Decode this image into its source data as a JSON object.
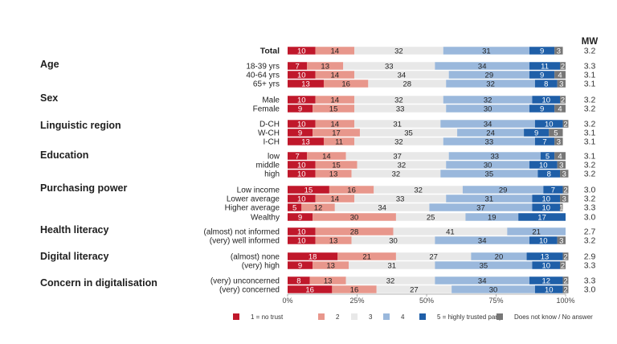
{
  "chart_data": {
    "type": "bar",
    "orientation": "horizontal-stacked-100",
    "mw_header": "MW",
    "x_ticks": [
      "0%",
      "25%",
      "50%",
      "75%",
      "100%"
    ],
    "xlim": [
      0,
      100
    ],
    "colors": [
      "#c0182b",
      "#e8978c",
      "#e8e8e8",
      "#9ab8dc",
      "#1f5fa8",
      "#777777"
    ],
    "legend": [
      "1 = no trust",
      "2",
      "3",
      "4",
      "5 = highly trusted party",
      "Does not know / No answer"
    ],
    "groups": [
      {
        "label": "",
        "rows": [
          {
            "label": "Total",
            "values": [
              10,
              14,
              32,
              31,
              9,
              3
            ],
            "mw": "3.2"
          }
        ]
      },
      {
        "label": "Age",
        "rows": [
          {
            "label": "18-39 yrs",
            "values": [
              7,
              13,
              33,
              34,
              11,
              2
            ],
            "mw": "3.3"
          },
          {
            "label": "40-64 yrs",
            "values": [
              10,
              14,
              34,
              29,
              9,
              4
            ],
            "mw": "3.1"
          },
          {
            "label": "65+ yrs",
            "values": [
              13,
              16,
              28,
              32,
              8,
              3
            ],
            "mw": "3.1"
          }
        ]
      },
      {
        "label": "Sex",
        "rows": [
          {
            "label": "Male",
            "values": [
              10,
              14,
              32,
              32,
              10,
              2
            ],
            "mw": "3.2"
          },
          {
            "label": "Female",
            "values": [
              9,
              15,
              33,
              30,
              9,
              4
            ],
            "mw": "3.2"
          }
        ]
      },
      {
        "label": "Linguistic region",
        "rows": [
          {
            "label": "D-CH",
            "values": [
              10,
              14,
              31,
              34,
              10,
              2
            ],
            "mw": "3.2"
          },
          {
            "label": "W-CH",
            "values": [
              9,
              17,
              35,
              24,
              9,
              5
            ],
            "mw": "3.1"
          },
          {
            "label": "I-CH",
            "values": [
              13,
              11,
              32,
              33,
              7,
              3
            ],
            "mw": "3.1"
          }
        ]
      },
      {
        "label": "Education",
        "rows": [
          {
            "label": "low",
            "values": [
              7,
              14,
              37,
              33,
              5,
              4
            ],
            "mw": "3.1"
          },
          {
            "label": "middle",
            "values": [
              10,
              15,
              32,
              30,
              10,
              3
            ],
            "mw": "3.2"
          },
          {
            "label": "high",
            "values": [
              10,
              13,
              32,
              35,
              8,
              3
            ],
            "mw": "3.2"
          }
        ]
      },
      {
        "label": "Purchasing power",
        "rows": [
          {
            "label": "Low income",
            "values": [
              15,
              16,
              32,
              29,
              7,
              2
            ],
            "mw": "3.0"
          },
          {
            "label": "Lower average",
            "values": [
              10,
              14,
              33,
              31,
              10,
              3
            ],
            "mw": "3.2"
          },
          {
            "label": "Higher average",
            "values": [
              5,
              12,
              34,
              37,
              10,
              1
            ],
            "mw": "3.3"
          },
          {
            "label": "Wealthy",
            "values": [
              9,
              30,
              25,
              19,
              17,
              0
            ],
            "mw": "3.0"
          }
        ]
      },
      {
        "label": "Health literacy",
        "rows": [
          {
            "label": "(almost) not informed",
            "values": [
              10,
              28,
              41,
              21,
              0,
              0
            ],
            "mw": "2.7"
          },
          {
            "label": "(very) well informed",
            "values": [
              10,
              13,
              30,
              34,
              10,
              3
            ],
            "mw": "3.2"
          }
        ]
      },
      {
        "label": "Digital literacy",
        "rows": [
          {
            "label": "(almost) none",
            "values": [
              18,
              21,
              27,
              20,
              13,
              2
            ],
            "mw": "2.9"
          },
          {
            "label": "(very) high",
            "values": [
              9,
              13,
              31,
              35,
              10,
              2
            ],
            "mw": "3.3"
          }
        ]
      },
      {
        "label": "Concern in digitalisation",
        "rows": [
          {
            "label": "(very) unconcerned",
            "values": [
              8,
              13,
              32,
              34,
              12,
              2
            ],
            "mw": "3.3"
          },
          {
            "label": "(very) concerned",
            "values": [
              16,
              16,
              27,
              30,
              10,
              2
            ],
            "mw": "3.0"
          }
        ]
      }
    ]
  }
}
